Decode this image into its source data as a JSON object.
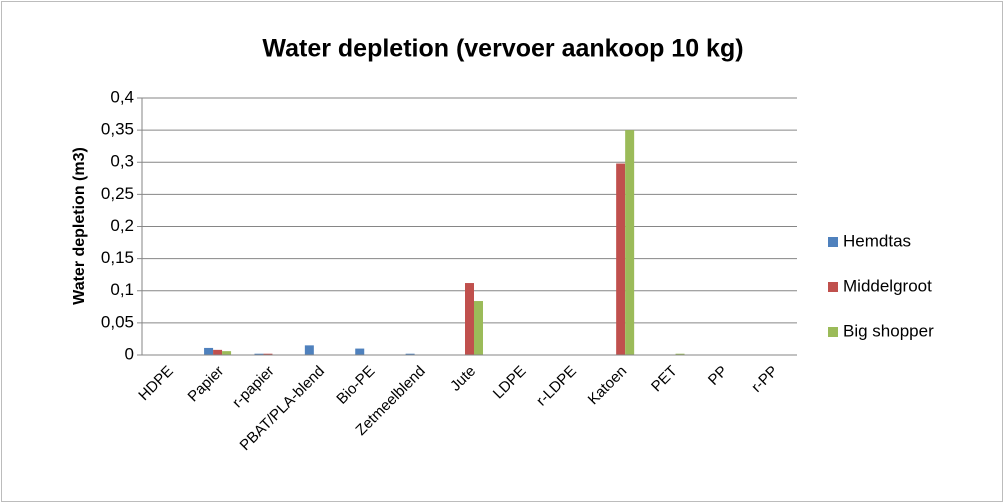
{
  "chart_data": {
    "type": "bar",
    "title": "Water depletion (vervoer aankoop 10 kg)",
    "y_label": "Water depletion  (m3)",
    "categories": [
      "HDPE",
      "Papier",
      "r-papier",
      "PBAT/PLA-blend",
      "Bio-PE",
      "Zetmeelblend",
      "Jute",
      "LDPE",
      "r-LDPE",
      "Katoen",
      "PET",
      "PP",
      "r-PP"
    ],
    "series": [
      {
        "name": "Hemdtas",
        "color": "#4f81bd",
        "values": [
          0,
          0.011,
          0.002,
          0.015,
          0.01,
          0.002,
          0,
          0,
          0,
          0,
          0,
          0,
          0
        ]
      },
      {
        "name": "Middelgroot",
        "color": "#c0504d",
        "values": [
          0,
          0.008,
          0.002,
          0,
          0,
          0,
          0.112,
          0,
          0,
          0.298,
          0,
          0,
          0
        ]
      },
      {
        "name": "Big shopper",
        "color": "#9bbb59",
        "values": [
          0,
          0.006,
          0,
          0,
          0,
          0,
          0.084,
          0,
          0,
          0.35,
          0.002,
          0,
          0
        ]
      }
    ],
    "ylim": [
      0,
      0.4
    ],
    "yticks": [
      0,
      {
        "value": 0.05,
        "label": "0,05"
      },
      {
        "value": 0.1,
        "label": "0,1"
      },
      {
        "value": 0.15,
        "label": "0,15"
      },
      {
        "value": 0.2,
        "label": "0,2"
      },
      {
        "value": 0.25,
        "label": "0,25"
      },
      {
        "value": 0.3,
        "label": "0,3"
      },
      {
        "value": 0.35,
        "label": "0,35"
      },
      {
        "value": 0.4,
        "label": "0,4"
      }
    ],
    "grid": true,
    "legend": "right"
  }
}
